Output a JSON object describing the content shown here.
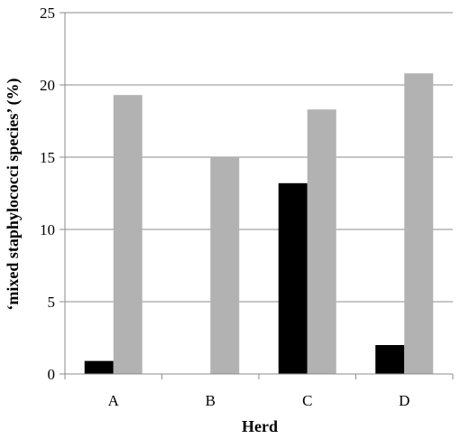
{
  "chart_data": {
    "type": "bar",
    "title": "",
    "xlabel": "Herd",
    "ylabel": "‘mixed staphylococci species’ (%)",
    "categories": [
      "A",
      "B",
      "C",
      "D"
    ],
    "ylim": [
      0,
      25
    ],
    "yticks": [
      0,
      5,
      10,
      15,
      20,
      25
    ],
    "grid": true,
    "legend": "none",
    "series": [
      {
        "values": [
          0.9,
          0,
          13.2,
          2.0
        ],
        "color": "#000000"
      },
      {
        "values": [
          19.3,
          15.0,
          18.3,
          20.8
        ],
        "color": "#b2b2b2"
      }
    ]
  }
}
